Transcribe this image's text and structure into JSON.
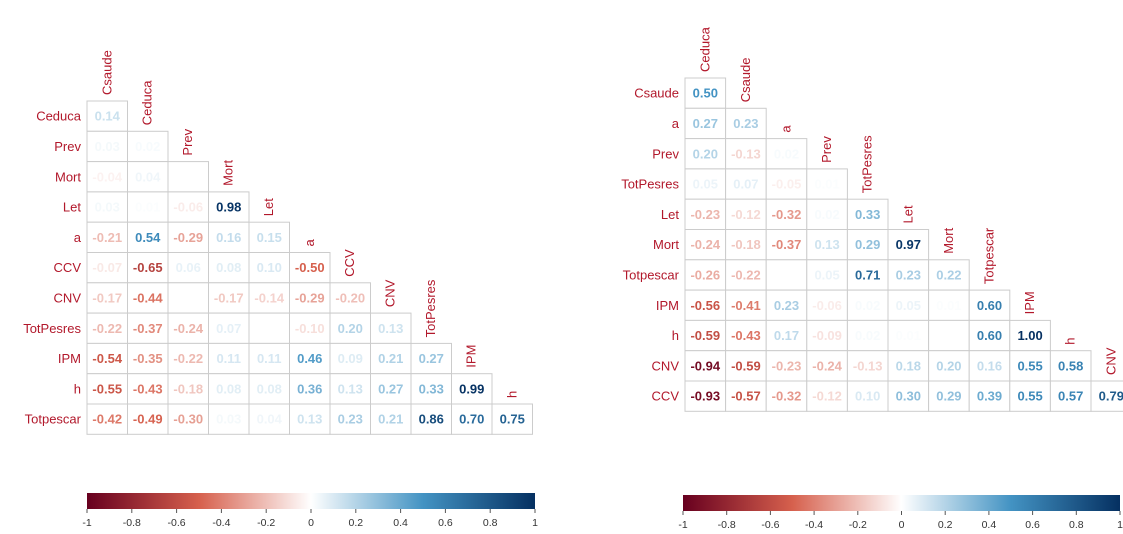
{
  "colors": {
    "neg": "#67001f",
    "neg_mid": "#d6604d",
    "white": "#ffffff",
    "pos_mid": "#4393c3",
    "pos": "#053061",
    "label": "#b2182b",
    "grid": "#cccccc"
  },
  "chart_data": [
    {
      "type": "heatmap",
      "subtype": "lower-triangle correlation matrix",
      "columns": [
        "Csaude",
        "Ceduca",
        "Prev",
        "Mort",
        "Let",
        "a",
        "CCV",
        "CNV",
        "TotPesres",
        "IPM",
        "h"
      ],
      "rows": [
        "Ceduca",
        "Prev",
        "Mort",
        "Let",
        "a",
        "CCV",
        "CNV",
        "TotPesres",
        "IPM",
        "h",
        "Totpescar"
      ],
      "values": [
        [
          0.14
        ],
        [
          0.03,
          0.02
        ],
        [
          -0.04,
          0.04,
          null
        ],
        [
          0.03,
          0.01,
          -0.06,
          0.98
        ],
        [
          -0.21,
          0.54,
          -0.29,
          0.16,
          0.15
        ],
        [
          -0.07,
          -0.65,
          0.06,
          0.08,
          0.1,
          -0.5
        ],
        [
          -0.17,
          -0.44,
          null,
          -0.17,
          -0.14,
          -0.29,
          -0.2
        ],
        [
          -0.22,
          -0.37,
          -0.24,
          0.07,
          null,
          -0.1,
          0.2,
          0.13
        ],
        [
          -0.54,
          -0.35,
          -0.22,
          0.11,
          0.11,
          0.46,
          0.09,
          0.21,
          0.27
        ],
        [
          -0.55,
          -0.43,
          -0.18,
          0.08,
          0.08,
          0.36,
          0.13,
          0.27,
          0.33,
          0.99
        ],
        [
          -0.42,
          -0.49,
          -0.3,
          0.03,
          0.04,
          0.13,
          0.23,
          0.21,
          0.86,
          0.7,
          0.75
        ]
      ],
      "colorbar": {
        "range": [
          -1,
          1
        ],
        "ticks": [
          "-1",
          "-0.8",
          "-0.6",
          "-0.4",
          "-0.2",
          "0",
          "0.2",
          "0.4",
          "0.6",
          "0.8",
          "1"
        ]
      }
    },
    {
      "type": "heatmap",
      "subtype": "lower-triangle correlation matrix",
      "columns": [
        "Ceduca",
        "Csaude",
        "a",
        "Prev",
        "TotPesres",
        "Let",
        "Mort",
        "Totpescar",
        "IPM",
        "h",
        "CNV"
      ],
      "rows": [
        "Csaude",
        "a",
        "Prev",
        "TotPesres",
        "Let",
        "Mort",
        "Totpescar",
        "IPM",
        "h",
        "CNV",
        "CCV"
      ],
      "values": [
        [
          0.5
        ],
        [
          0.27,
          0.23
        ],
        [
          0.2,
          -0.13,
          0.02
        ],
        [
          0.05,
          0.07,
          -0.05,
          0.01
        ],
        [
          -0.23,
          -0.12,
          -0.32,
          0.02,
          0.33
        ],
        [
          -0.24,
          -0.18,
          -0.37,
          0.13,
          0.29,
          0.97
        ],
        [
          -0.26,
          -0.22,
          null,
          0.05,
          0.71,
          0.23,
          0.22
        ],
        [
          -0.56,
          -0.41,
          0.23,
          -0.06,
          0.02,
          0.05,
          0.01,
          0.6
        ],
        [
          -0.59,
          -0.43,
          0.17,
          -0.09,
          0.02,
          0.01,
          null,
          0.6,
          1.0
        ],
        [
          -0.94,
          -0.59,
          -0.23,
          -0.24,
          -0.13,
          0.18,
          0.2,
          0.16,
          0.55,
          0.58
        ],
        [
          -0.93,
          -0.57,
          -0.32,
          -0.12,
          0.1,
          0.3,
          0.29,
          0.39,
          0.55,
          0.57,
          0.79
        ]
      ],
      "colorbar": {
        "range": [
          -1,
          1
        ],
        "ticks": [
          "-1",
          "-0.8",
          "-0.6",
          "-0.4",
          "-0.2",
          "0",
          "0.2",
          "0.4",
          "0.6",
          "0.8",
          "1"
        ]
      }
    }
  ]
}
